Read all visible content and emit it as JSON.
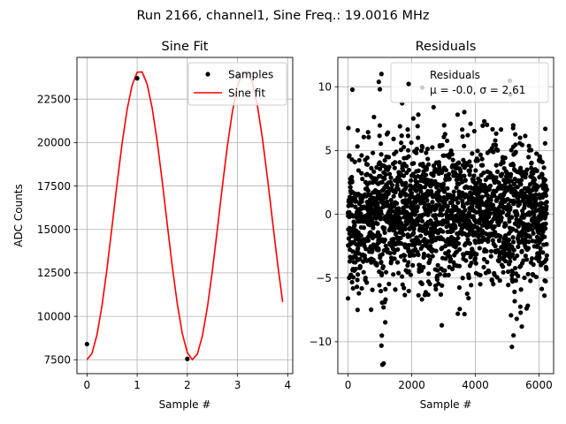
{
  "figure": {
    "suptitle": "Run 2166, channel1, Sine Freq.: 19.0016 MHz"
  },
  "chart_data": [
    {
      "type": "line",
      "title": "Sine Fit",
      "xlabel": "Sample #",
      "ylabel": "ADC Counts",
      "xlim": [
        -0.2,
        4.1
      ],
      "ylim": [
        6700,
        24900
      ],
      "xticks": [
        0,
        1,
        2,
        3,
        4
      ],
      "yticks": [
        7500,
        10000,
        12500,
        15000,
        17500,
        20000,
        22500
      ],
      "grid": true,
      "legend_position": "top-right",
      "colors": {
        "samples": "#000000",
        "fit": "#ff0000"
      },
      "series": [
        {
          "name": "Samples",
          "style": "markers",
          "x": [
            0,
            1,
            2,
            3
          ],
          "y": [
            8400,
            23700,
            7550,
            23800
          ]
        },
        {
          "name": "Sine fit",
          "style": "line",
          "amplitude": 8325,
          "offset": 15825,
          "period": 2.105,
          "phase": -1.57,
          "x_start": 0,
          "x_end": 3.9,
          "x_step": 0.1
        }
      ]
    },
    {
      "type": "scatter",
      "title": "Residuals",
      "xlabel": "Sample #",
      "ylabel": "",
      "xlim": [
        -320,
        6460
      ],
      "ylim": [
        -12.5,
        12.3
      ],
      "xticks": [
        0,
        2000,
        4000,
        6000
      ],
      "yticks": [
        -10,
        -5,
        0,
        5,
        10
      ],
      "grid": true,
      "legend_position": "top-right",
      "legend_lines": [
        "Residuals",
        "μ = -0.0, σ = 2.61"
      ],
      "mean": 0.0,
      "sigma": 2.61,
      "n_points": 6250,
      "x_max": 6249,
      "y_range": [
        -11.8,
        11.0
      ],
      "colors": {
        "points": "#000000"
      },
      "representative_points": [
        {
          "x": 1050,
          "y": 11.0
        },
        {
          "x": 1080,
          "y": -11.8
        },
        {
          "x": 1120,
          "y": -11.7
        },
        {
          "x": 1000,
          "y": 9.8
        },
        {
          "x": 1050,
          "y": -10.3
        },
        {
          "x": 1920,
          "y": 10.2
        },
        {
          "x": 1700,
          "y": 8.7
        },
        {
          "x": 2200,
          "y": 6.0
        },
        {
          "x": 3450,
          "y": -7.8
        },
        {
          "x": 3600,
          "y": 6.1
        },
        {
          "x": 3850,
          "y": 7.1
        },
        {
          "x": 5100,
          "y": 9.4
        },
        {
          "x": 5150,
          "y": -10.4
        },
        {
          "x": 5200,
          "y": -9.5
        },
        {
          "x": 5300,
          "y": -8.2
        },
        {
          "x": 0,
          "y": -6.6
        },
        {
          "x": 300,
          "y": -7.5
        },
        {
          "x": 6200,
          "y": 6.7
        },
        {
          "x": 6180,
          "y": -5.2
        }
      ]
    }
  ]
}
